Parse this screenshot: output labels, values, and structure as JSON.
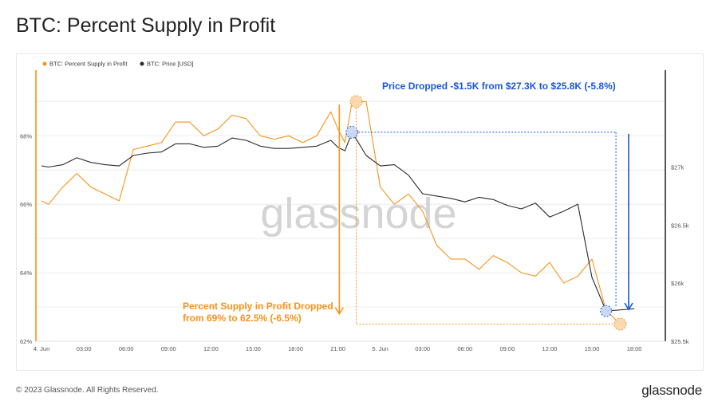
{
  "page": {
    "title": "BTC: Percent Supply in Profit",
    "copyright": "© 2023 Glassnode. All Rights Reserved.",
    "brand": "glassnode",
    "watermark": "glassnode"
  },
  "colors": {
    "supply": "#f7931a",
    "price": "#2b2b2b",
    "price_annotation": "#1a56db",
    "grid": "#ececec",
    "tick_text": "#555555",
    "watermark": "#d4d4d4"
  },
  "chart_data": {
    "type": "line",
    "title": "BTC: Percent Supply in Profit",
    "x_tick_labels": [
      "4. Jun",
      "03:00",
      "06:00",
      "09:00",
      "12:00",
      "15:00",
      "18:00",
      "21:00",
      "5. Jun",
      "03:00",
      "06:00",
      "09:00",
      "12:00",
      "15:00",
      "18:00"
    ],
    "x_hours": [
      0,
      3,
      6,
      9,
      12,
      15,
      18,
      21,
      24,
      27,
      30,
      33,
      36,
      39,
      42
    ],
    "left_axis": {
      "ticks": [
        62,
        64,
        66,
        68
      ],
      "tick_labels": [
        "62%",
        "64%",
        "66%",
        "68%"
      ],
      "range": [
        62,
        69.8
      ]
    },
    "right_axis": {
      "ticks": [
        25500,
        26000,
        26500,
        27000
      ],
      "tick_labels": [
        "$25.5k",
        "$26k",
        "$26.5k",
        "$27k"
      ],
      "range": [
        25500,
        27800
      ]
    },
    "grid": true,
    "legend_position": "top-left",
    "series": [
      {
        "name": "BTC: Percent Supply in Profit",
        "axis": "left",
        "x": [
          0,
          0.5,
          1.5,
          2.5,
          3.5,
          4.5,
          5.5,
          6.5,
          7.5,
          8.5,
          9.5,
          10.5,
          11.5,
          12.5,
          13.5,
          14.5,
          15.5,
          16.5,
          17.5,
          18.5,
          19.5,
          20.5,
          21,
          21.5,
          22,
          23,
          24,
          25,
          26,
          27,
          28,
          29,
          30,
          31,
          32,
          33,
          34,
          35,
          36,
          37,
          38,
          39,
          40,
          41
        ],
        "values": [
          66.1,
          66.0,
          66.5,
          66.9,
          66.5,
          66.3,
          66.1,
          67.6,
          67.7,
          67.8,
          68.4,
          68.4,
          68.0,
          68.2,
          68.6,
          68.5,
          68.0,
          67.9,
          68.0,
          67.8,
          68.0,
          68.7,
          68.2,
          67.8,
          69.0,
          69.0,
          66.5,
          66.0,
          66.3,
          65.8,
          64.8,
          64.4,
          64.4,
          64.1,
          64.5,
          64.3,
          64.0,
          63.9,
          64.3,
          63.7,
          63.9,
          64.4,
          62.9,
          62.5
        ]
      },
      {
        "name": "BTC: Price [USD]",
        "axis": "right",
        "x": [
          0,
          0.5,
          1.5,
          2.5,
          3.5,
          4.5,
          5.5,
          6.5,
          7.5,
          8.5,
          9.5,
          10.5,
          11.5,
          12.5,
          13.5,
          14.5,
          15.5,
          16.5,
          17.5,
          18.5,
          19.5,
          20.5,
          21,
          21.5,
          22,
          23,
          24,
          25,
          26,
          27,
          28,
          29,
          30,
          31,
          32,
          33,
          34,
          35,
          36,
          37,
          38,
          39,
          40,
          41,
          42
        ],
        "values": [
          27010,
          27000,
          27020,
          27080,
          27040,
          27020,
          27010,
          27100,
          27120,
          27130,
          27200,
          27200,
          27170,
          27180,
          27250,
          27230,
          27180,
          27160,
          27160,
          27170,
          27180,
          27230,
          27170,
          27140,
          27300,
          27100,
          27010,
          27020,
          26930,
          26770,
          26750,
          26730,
          26700,
          26740,
          26720,
          26670,
          26640,
          26690,
          26570,
          26620,
          26680,
          26050,
          25760,
          25770,
          25780
        ]
      }
    ],
    "annotations": {
      "price": {
        "text": "Price Dropped -$1.5K from $27.3K to $25.8K (-5.8%)"
      },
      "supply": {
        "line1": "Percent Supply in Profit Dropped",
        "line2": "from 69% to 62.5% (-6.5%)"
      }
    }
  }
}
